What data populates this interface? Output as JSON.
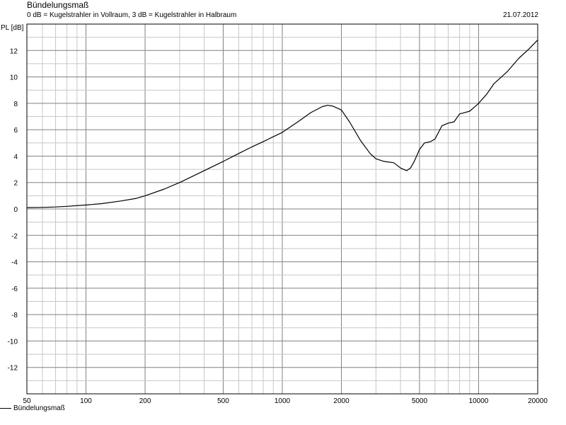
{
  "chart_data": {
    "type": "line",
    "title": "Bündelungsmaß",
    "subtitle": "0 dB = Kugelstrahler in Vollraum, 3 dB = Kugelstrahler in Halbraum",
    "date": "21.07.2012",
    "ylabel": "PL [dB]",
    "xlabel": "",
    "xscale": "log",
    "xlim": [
      50,
      20000
    ],
    "ylim": [
      -14,
      14
    ],
    "x_ticks": [
      50,
      100,
      200,
      500,
      1000,
      2000,
      5000,
      10000,
      20000
    ],
    "y_ticks": [
      12,
      10,
      8,
      6,
      4,
      2,
      0,
      -2,
      -4,
      -6,
      -8,
      -10,
      -12
    ],
    "grid": true,
    "legend_position": "bottom-left",
    "series": [
      {
        "name": "Bündelungsmaß",
        "color": "#000000",
        "x": [
          50,
          60,
          70,
          80,
          100,
          120,
          150,
          180,
          200,
          250,
          300,
          400,
          500,
          600,
          700,
          800,
          1000,
          1200,
          1400,
          1600,
          1700,
          1800,
          2000,
          2200,
          2500,
          2800,
          3000,
          3300,
          3700,
          4000,
          4300,
          4500,
          4700,
          5000,
          5300,
          5700,
          6000,
          6500,
          7000,
          7500,
          8000,
          8500,
          9000,
          9500,
          10000,
          11000,
          12000,
          14000,
          16000,
          18000,
          20000
        ],
        "y": [
          0.1,
          0.12,
          0.15,
          0.2,
          0.3,
          0.4,
          0.6,
          0.8,
          1.0,
          1.5,
          2.0,
          2.9,
          3.6,
          4.2,
          4.7,
          5.1,
          5.8,
          6.6,
          7.3,
          7.75,
          7.85,
          7.8,
          7.5,
          6.6,
          5.2,
          4.2,
          3.8,
          3.6,
          3.5,
          3.1,
          2.9,
          3.1,
          3.6,
          4.5,
          5.0,
          5.1,
          5.3,
          6.3,
          6.5,
          6.6,
          7.2,
          7.3,
          7.4,
          7.7,
          8.0,
          8.7,
          9.5,
          10.4,
          11.4,
          12.1,
          12.8
        ]
      }
    ]
  }
}
